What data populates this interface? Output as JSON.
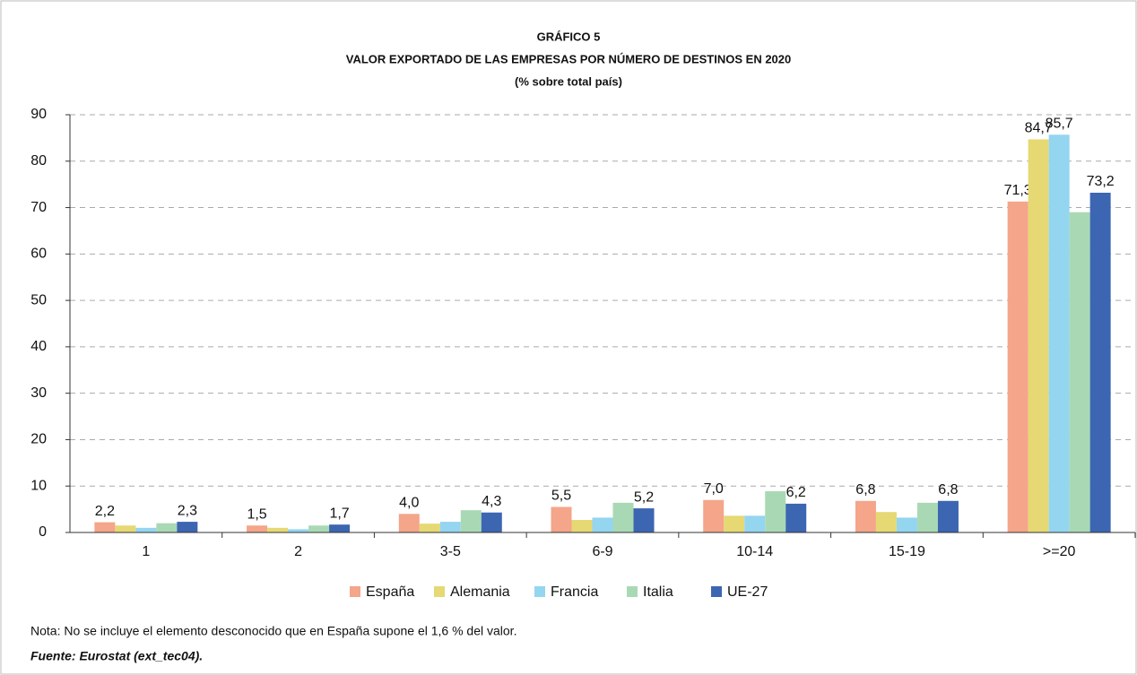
{
  "chart_data": {
    "type": "bar",
    "title": "GRÁFICO 5",
    "subtitle": "VALOR EXPORTADO DE LAS EMPRESAS POR NÚMERO DE DESTINOS EN 2020",
    "unit_note": "(% sobre total país)",
    "categories": [
      "1",
      "2",
      "3-5",
      "6-9",
      "10-14",
      "15-19",
      ">=20"
    ],
    "series": [
      {
        "name": "España",
        "color": "#f4a58a",
        "values": [
          2.2,
          1.5,
          4.0,
          5.5,
          7.0,
          6.8,
          71.3
        ],
        "value_labels": [
          "2,2",
          "1,5",
          "4,0",
          "5,5",
          "7,0",
          "6,8",
          "71,3"
        ]
      },
      {
        "name": "Alemania",
        "color": "#e6d873",
        "values": [
          1.5,
          1.0,
          1.9,
          2.7,
          3.6,
          4.4,
          84.7
        ],
        "value_labels": [
          null,
          null,
          null,
          null,
          null,
          null,
          "84,7"
        ]
      },
      {
        "name": "Francia",
        "color": "#94d5f0",
        "values": [
          1.0,
          0.7,
          2.3,
          3.2,
          3.6,
          3.2,
          85.7
        ],
        "value_labels": [
          null,
          null,
          null,
          null,
          null,
          null,
          "85,7"
        ]
      },
      {
        "name": "Italia",
        "color": "#a9d9b4",
        "values": [
          2.0,
          1.5,
          4.8,
          6.4,
          8.9,
          6.4,
          69.0
        ]
      },
      {
        "name": "UE-27",
        "color": "#3c66b1",
        "values": [
          2.3,
          1.7,
          4.3,
          5.2,
          6.2,
          6.8,
          73.2
        ],
        "value_labels": [
          "2,3",
          "1,7",
          "4,3",
          "5,2",
          "6,2",
          "6,8",
          "73,2"
        ]
      }
    ],
    "ylim": [
      0,
      90
    ],
    "yticks": [
      0,
      10,
      20,
      30,
      40,
      50,
      60,
      70,
      80,
      90
    ],
    "grid": true,
    "legend": "bottom",
    "note": "Nota: No se incluye el elemento desconocido que en España supone el 1,6 % del valor.",
    "source": "Fuente: Eurostat (ext_tec04)."
  }
}
